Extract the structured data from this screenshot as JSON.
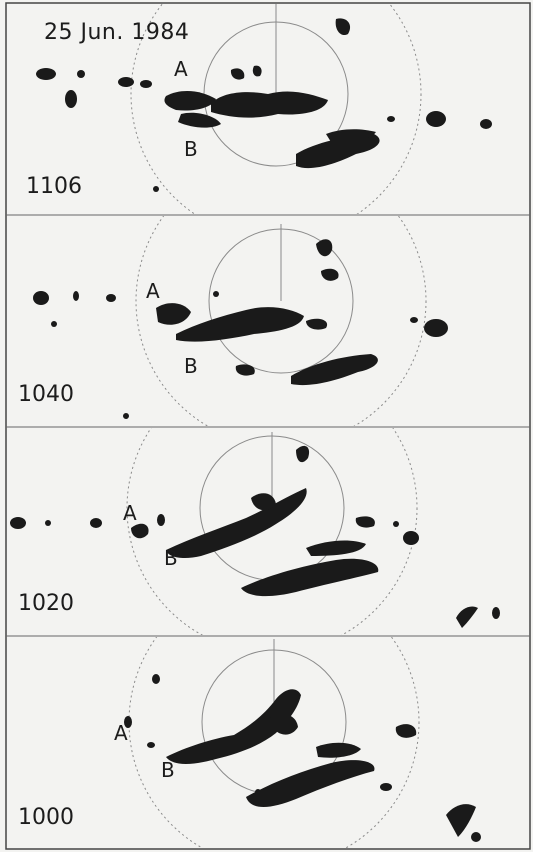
{
  "date_label": "25 Jun. 1984",
  "panels": [
    {
      "time": "1106",
      "marker_a": "A",
      "marker_b": "B"
    },
    {
      "time": "1040",
      "marker_a": "A",
      "marker_b": "B"
    },
    {
      "time": "1020",
      "marker_a": "A",
      "marker_b": "B"
    },
    {
      "time": "1000",
      "marker_a": "A",
      "marker_b": "B"
    }
  ],
  "colors": {
    "background": "#f3f3f1",
    "echo": "#1a1a1a",
    "ring": "#8a8a8a",
    "frame": "#444444"
  }
}
